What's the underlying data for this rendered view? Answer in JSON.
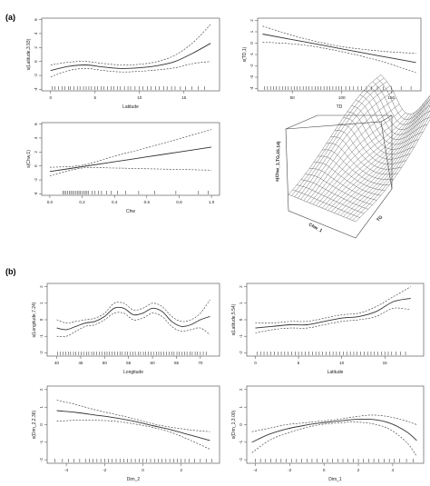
{
  "panel_labels": {
    "a": "(a)",
    "b": "(b)"
  },
  "colors": {
    "line": "#333333",
    "frame": "#444444",
    "rug": "#222222",
    "surface": "#dddddd"
  },
  "surface_plot": {
    "type": "surface",
    "zlabel": "s(Chw_1,TG,15.14)",
    "xlabel": "Chw_1",
    "ylabel": "TG"
  },
  "chart_data": [
    {
      "id": "a1",
      "type": "line",
      "xlabel": "Latitude",
      "ylabel": "s(Latitude,3.93)",
      "xlim": [
        -1,
        19
      ],
      "ylim": [
        -4.2,
        6.2
      ],
      "xticks": [
        0,
        5,
        10,
        15
      ],
      "yticks": [
        -4,
        -2,
        0,
        2,
        4,
        6
      ],
      "x": [
        0,
        2,
        4,
        6,
        8,
        10,
        12,
        14,
        16,
        18
      ],
      "fit": [
        -1.3,
        -0.7,
        -0.5,
        -0.8,
        -1.0,
        -0.9,
        -0.6,
        0.0,
        1.2,
        2.6
      ],
      "upper": [
        -0.5,
        -0.1,
        0.0,
        -0.3,
        -0.5,
        -0.4,
        0.0,
        0.9,
        2.7,
        5.3
      ],
      "lower": [
        -2.2,
        -1.3,
        -1.0,
        -1.3,
        -1.5,
        -1.4,
        -1.2,
        -0.9,
        -0.3,
        0.0
      ],
      "rug": [
        0.2,
        0.5,
        0.9,
        1.3,
        1.6,
        2.0,
        2.2,
        2.6,
        3.0,
        3.3,
        3.7,
        4.0,
        4.3,
        4.6,
        5.0,
        5.3,
        5.7,
        6.0,
        6.4,
        6.8,
        7.1,
        7.5,
        7.8,
        8.3,
        8.7,
        9.0,
        9.5,
        10.0,
        10.4,
        10.9,
        11.3,
        11.8,
        12.2,
        12.7,
        13.1,
        13.6,
        14.0,
        14.6,
        15.2,
        15.9,
        16.6,
        17.3
      ]
    },
    {
      "id": "a2",
      "type": "line",
      "xlabel": "TD",
      "ylabel": "s(TD,1)",
      "xlim": [
        15,
        180
      ],
      "ylim": [
        -4.2,
        2.2
      ],
      "xticks": [
        50,
        100,
        150
      ],
      "yticks": [
        -4,
        -3,
        -2,
        -1,
        0,
        1,
        2
      ],
      "x": [
        20,
        60,
        100,
        140,
        175
      ],
      "fit": [
        0.8,
        0.15,
        -0.5,
        -1.15,
        -1.7
      ],
      "upper": [
        1.5,
        0.45,
        -0.3,
        -0.7,
        -0.9
      ],
      "lower": [
        0.1,
        -0.15,
        -0.75,
        -1.6,
        -2.6
      ],
      "rug": [
        22,
        25,
        28,
        31,
        34,
        37,
        40,
        43,
        46,
        49,
        52,
        55,
        58,
        61,
        64,
        67,
        70,
        73,
        76,
        79,
        82,
        85,
        88,
        91,
        94,
        97,
        100,
        104,
        108,
        112,
        116,
        120,
        125,
        130,
        136,
        142,
        150,
        160,
        170
      ]
    },
    {
      "id": "a3",
      "type": "line",
      "xlabel": "Chw",
      "ylabel": "s(Chw,1)",
      "xlim": [
        -0.05,
        1.05
      ],
      "ylim": [
        -4.2,
        6.2
      ],
      "xticks": [
        0.0,
        0.2,
        0.4,
        0.6,
        0.8,
        1.0
      ],
      "xtick_labels": [
        "0.0",
        "0.2",
        "0.4",
        "0.6",
        "0.8",
        "1.0"
      ],
      "yticks": [
        -4,
        -2,
        0,
        2,
        4,
        6
      ],
      "x": [
        0.0,
        0.2,
        0.4,
        0.6,
        0.8,
        1.0
      ],
      "fit": [
        -0.8,
        -0.1,
        0.6,
        1.3,
        2.0,
        2.7
      ],
      "upper": [
        -0.2,
        0.1,
        1.4,
        2.6,
        3.9,
        5.2
      ],
      "lower": [
        -1.4,
        -0.3,
        -0.3,
        -0.4,
        -0.5,
        -0.6
      ],
      "rug": [
        0.08,
        0.09,
        0.1,
        0.11,
        0.12,
        0.13,
        0.14,
        0.15,
        0.16,
        0.17,
        0.18,
        0.19,
        0.2,
        0.21,
        0.22,
        0.23,
        0.24,
        0.26,
        0.28,
        0.3,
        0.32,
        0.35,
        0.38,
        0.42,
        0.47,
        0.55,
        0.65,
        0.78,
        0.92,
        0.98
      ]
    },
    {
      "id": "b1",
      "type": "line",
      "xlabel": "Longitude",
      "ylabel": "s(Longitude,7.24)",
      "xlim": [
        38,
        74
      ],
      "ylim": [
        -2.2,
        2.2
      ],
      "xticks": [
        40,
        45,
        50,
        55,
        60,
        65,
        70
      ],
      "yticks": [
        -2,
        -1,
        0,
        1,
        2
      ],
      "x": [
        40,
        42,
        44,
        46,
        48,
        50,
        52,
        54,
        56,
        58,
        60,
        62,
        64,
        66,
        68,
        70,
        72
      ],
      "fit": [
        -0.5,
        -0.6,
        -0.4,
        -0.2,
        -0.1,
        0.2,
        0.7,
        0.7,
        0.3,
        0.4,
        0.7,
        0.5,
        -0.1,
        -0.4,
        -0.3,
        0.0,
        0.2
      ],
      "upper": [
        0.0,
        -0.2,
        -0.1,
        0.0,
        0.1,
        0.4,
        1.0,
        1.0,
        0.6,
        0.7,
        1.0,
        0.8,
        0.2,
        -0.1,
        0.0,
        0.4,
        1.2
      ],
      "lower": [
        -1.0,
        -1.0,
        -0.7,
        -0.4,
        -0.3,
        0.0,
        0.4,
        0.4,
        0.0,
        0.1,
        0.4,
        0.2,
        -0.4,
        -0.7,
        -0.6,
        -0.5,
        -0.9
      ],
      "rug": [
        40.2,
        40.8,
        41.3,
        41.9,
        42.4,
        42.9,
        43.5,
        44.0,
        44.6,
        45.1,
        45.6,
        46.2,
        46.7,
        47.3,
        47.8,
        48.3,
        48.9,
        49.4,
        50.0,
        50.5,
        51.0,
        51.6,
        52.1,
        52.7,
        53.2,
        53.7,
        54.3,
        54.8,
        55.4,
        55.9,
        56.4,
        57.0,
        57.5,
        58.1,
        58.6,
        59.1,
        59.7,
        60.2,
        60.8,
        61.3,
        61.8,
        62.4,
        62.9,
        63.5,
        64.0,
        64.5,
        65.1,
        65.6,
        66.2,
        66.7,
        67.2,
        67.8,
        68.3,
        68.9,
        69.4,
        70.0,
        70.6,
        71.2
      ]
    },
    {
      "id": "b2",
      "type": "line",
      "xlabel": "Latitude",
      "ylabel": "s(Latitude,5.54)",
      "xlim": [
        -1,
        19.5
      ],
      "ylim": [
        -2.2,
        2.2
      ],
      "xticks": [
        0,
        5,
        10,
        15
      ],
      "yticks": [
        -2,
        -1,
        0,
        1,
        2
      ],
      "x": [
        0,
        2,
        4,
        6,
        8,
        10,
        12,
        14,
        16,
        18
      ],
      "fit": [
        -0.5,
        -0.4,
        -0.3,
        -0.3,
        -0.1,
        0.1,
        0.2,
        0.5,
        1.1,
        1.3
      ],
      "upper": [
        -0.2,
        -0.2,
        -0.1,
        -0.1,
        0.1,
        0.3,
        0.4,
        0.8,
        1.4,
        2.0
      ],
      "lower": [
        -0.8,
        -0.6,
        -0.5,
        -0.5,
        -0.3,
        -0.1,
        0.0,
        0.2,
        0.7,
        0.6
      ],
      "rug": [
        0.2,
        0.6,
        1.0,
        1.4,
        1.8,
        2.2,
        2.6,
        3.0,
        3.4,
        3.8,
        4.2,
        4.6,
        5.0,
        5.4,
        5.8,
        6.2,
        6.6,
        7.0,
        7.4,
        7.8,
        8.2,
        8.6,
        9.0,
        9.4,
        9.8,
        10.2,
        10.6,
        11.0,
        11.4,
        11.8,
        12.2,
        12.6,
        13.0,
        13.4,
        13.8,
        14.2,
        14.6,
        15.0,
        15.4,
        15.8,
        16.3,
        16.8,
        17.4
      ]
    },
    {
      "id": "b3",
      "type": "line",
      "xlabel": "Dim_2",
      "ylabel": "s(Dim_2,2.36)",
      "xlim": [
        -5,
        4
      ],
      "ylim": [
        -2.2,
        2.2
      ],
      "xticks": [
        -4,
        -2,
        0,
        2
      ],
      "yticks": [
        -2,
        -1,
        0,
        1,
        2
      ],
      "x": [
        -4.5,
        -3.5,
        -2.5,
        -1.5,
        -0.5,
        0.5,
        1.5,
        2.5,
        3.5
      ],
      "fit": [
        0.8,
        0.7,
        0.55,
        0.4,
        0.2,
        -0.05,
        -0.3,
        -0.6,
        -0.9
      ],
      "upper": [
        1.4,
        1.15,
        0.85,
        0.6,
        0.35,
        0.05,
        -0.15,
        -0.3,
        -0.4
      ],
      "lower": [
        0.2,
        0.25,
        0.25,
        0.2,
        0.05,
        -0.15,
        -0.45,
        -0.9,
        -1.4
      ],
      "rug": [
        -4.6,
        -4.2,
        -3.9,
        -3.6,
        -3.3,
        -3.0,
        -2.8,
        -2.6,
        -2.4,
        -2.2,
        -2.0,
        -1.8,
        -1.6,
        -1.4,
        -1.2,
        -1.0,
        -0.8,
        -0.6,
        -0.4,
        -0.2,
        0.0,
        0.2,
        0.4,
        0.6,
        0.8,
        1.0,
        1.2,
        1.4,
        1.6,
        1.8,
        2.0,
        2.2,
        2.4,
        2.7,
        3.0,
        3.3,
        3.6
      ]
    },
    {
      "id": "b4",
      "type": "line",
      "xlabel": "Dim_1",
      "ylabel": "s(Dim_1,3.00)",
      "xlim": [
        -4.5,
        5.8
      ],
      "ylim": [
        -2.2,
        2.2
      ],
      "xticks": [
        -4,
        -2,
        0,
        2,
        4
      ],
      "yticks": [
        -2,
        -1,
        0,
        1,
        2
      ],
      "x": [
        -4.2,
        -3.2,
        -2.2,
        -1.2,
        -0.2,
        0.8,
        1.8,
        2.8,
        3.8,
        4.8,
        5.4
      ],
      "fit": [
        -1.0,
        -0.55,
        -0.25,
        -0.05,
        0.1,
        0.2,
        0.3,
        0.3,
        0.1,
        -0.4,
        -0.9
      ],
      "upper": [
        -0.4,
        -0.2,
        0.0,
        0.1,
        0.2,
        0.3,
        0.45,
        0.55,
        0.45,
        0.2,
        0.0
      ],
      "lower": [
        -1.6,
        -0.9,
        -0.5,
        -0.2,
        0.0,
        0.1,
        0.15,
        0.05,
        -0.25,
        -1.0,
        -1.8
      ],
      "rug": [
        -4.0,
        -3.7,
        -3.4,
        -3.1,
        -2.8,
        -2.5,
        -2.2,
        -1.9,
        -1.6,
        -1.3,
        -1.0,
        -0.7,
        -0.4,
        -0.1,
        0.2,
        0.5,
        0.8,
        1.1,
        1.4,
        1.7,
        2.0,
        2.3,
        2.6,
        2.9,
        3.2,
        3.5,
        3.8,
        4.1,
        4.4,
        4.8,
        5.2
      ]
    }
  ]
}
